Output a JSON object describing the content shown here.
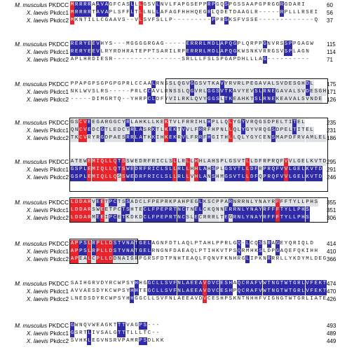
{
  "species_labels": [
    {
      "genus": "M. musculus",
      "gene": "PKDCC"
    },
    {
      "genus": "X. laevis",
      "gene": "Pkdcc1"
    },
    {
      "genus": "X. laevis",
      "gene": "Pkdcc2"
    }
  ],
  "blocks": [
    {
      "rows": [
        {
          "seq": "MRRRRAAVAGFCASLLLGSVLNVLFAPGSEPPRPGQSPGSSAAPGPRGGRGDARI",
          "num": "60"
        },
        {
          "seq": "MRRRRTAVAPLSFFLTLLNLLAFAGFHHHQEGRLQDETDAAGLR-----RPLLLRSEI",
          "num": "56"
        },
        {
          "seq": "MKNTILLCGAAVS--VLSVFSLLP---------PPRSKSFVSSE-------------Q",
          "num": "37"
        }
      ]
    },
    {
      "rows": [
        {
          "seq": "RERYEEVHYS---MGGGGRGAG-----ERRRLMDLAPQGPLQRPPGNVRSSPPGAGW",
          "num": "115"
        },
        {
          "seq": "RERYEEVLRYRDHRATEPPTSARILRPERRRLMDLAPQGKWSNKVRRGSVSPLAGN",
          "num": "114"
        },
        {
          "seq": "APLHRDIESR----------------SRLLLFSLSPGAPDHLLLAG----------",
          "num": "71"
        }
      ]
    },
    {
      "rows": [
        {
          "seq": "PPAPGPSGPGPGPRLCCAALRNSSLQGVGGSVTKAVYRVRLPEGAVALSVDESGHDL",
          "num": "175"
        },
        {
          "seq": "NKLWVSLRS-----PRLCCAVLRNSSLQGVRLGGSVTKAVYEVSLRNEGAVALSVDESGHDI",
          "num": "171"
        },
        {
          "seq": "-----DIMGRTQ--YHRPCLDFYVILRKLQVYGGSLTKEAHKTSLRNEKEAVALSVNDE",
          "num": "126"
        }
      ]
    },
    {
      "rows": [
        {
          "seq": "GSCVEEGARGGCYRLAHKLLKEKTVLFRRIHLHPLLQLYGYVRQGSDPELTITEL",
          "num": "235"
        },
        {
          "seq": "QNCVEDCGTLEDCYRLASRKTLKEKTVVLFRRFHPNLLQLYGYVRQGSDPELTITEL",
          "num": "231"
        },
        {
          "seq": "TKCVRYRGDPAESRRLATKKIHKEKRVLFRRFHGITHLLQLYGYCENSMAPDFRVAMLEL",
          "num": "186"
        }
      ]
    },
    {
      "rows": [
        {
          "seq": "ATEWEMIQLLQTSSWEDRFRICLSLLRLLHHLAHSPLGSVTLLDFRPRQFVVLGELKVTD",
          "num": "295"
        },
        {
          "seq": "GSPLEMIQLLQTSWEDRFRICLSLLRLLHHLAHSPLGSVTLLDFRPRQFVVLGELKVTD",
          "num": "291"
        },
        {
          "seq": "GSPLEMIQLLQSSWEDRFRICLSLLRLLVHLANSHMGSVTLLDFQPRQFVVLGELKVTD",
          "num": "246"
        }
      ]
    },
    {
      "rows": [
        {
          "seq": "LDDARVEETPCTSSADCLFPEPRKPAHPEGLKSCPPARNRRNLYNAYRFFFTYLLPHS",
          "num": "355"
        },
        {
          "seq": "LDDARSWEETPCTSHTECLFPEPRTNCTNELCKQNNERRNLYNAYRFFFTYLLPHS",
          "num": "351"
        },
        {
          "seq": "LDDARMEEIPCETKDKDCLFPEPRTNCSLECRRRLTEGRNLYNAYRFFFTYLLPHS",
          "num": "306"
        }
      ]
    },
    {
      "rows": [
        {
          "seq": "APPSLRPLLDSTVNATGELAGNFDTLAQLPTAHLPPRLGQ-LCQSSRAGEYQRIQLD",
          "num": "414"
        },
        {
          "seq": "APPSLRPLLDSTVNATGELRNGNFDAEAQLPTIHKVTPSQRMHKSLDPGAQEFQKIHH",
          "num": "410"
        },
        {
          "seq": "APEALCPLLDDNAIGRPGRSFDTPNHTEAQLFQNVFKNHRGLIPKNRRRLLYKDYMLDEGYK",
          "num": "366"
        }
      ]
    },
    {
      "rows": [
        {
          "seq": "SAIHGRVDYRCWPSYHHGGCLLSVFNLAEEAVDVCESHAQCRAFVWTNGTWTGRLVFEKT",
          "num": "474"
        },
        {
          "seq": "AVVAESDYKCWPSYHHTEGCLLSVFNLAEEAVDVCESHPQCRAFVWTNGTWTGRLVFEKT",
          "num": "470"
        },
        {
          "seq": "LNEDSDYRCWPSYHHGGCLLSVFNLAEEAVDVCESHPSKNTNHHFVIGNGTWTGRLIATEFS",
          "num": "426"
        }
      ]
    },
    {
      "rows": [
        {
          "seq": "GWNQVWEAGKTTTVAGPS---",
          "num": "493"
        },
        {
          "seq": "GSRTLIVSALGTTTLLLTC--",
          "num": "489"
        },
        {
          "seq": "SVHKLEGVNSRVPAMRPSDLKK",
          "num": "449"
        }
      ]
    }
  ]
}
